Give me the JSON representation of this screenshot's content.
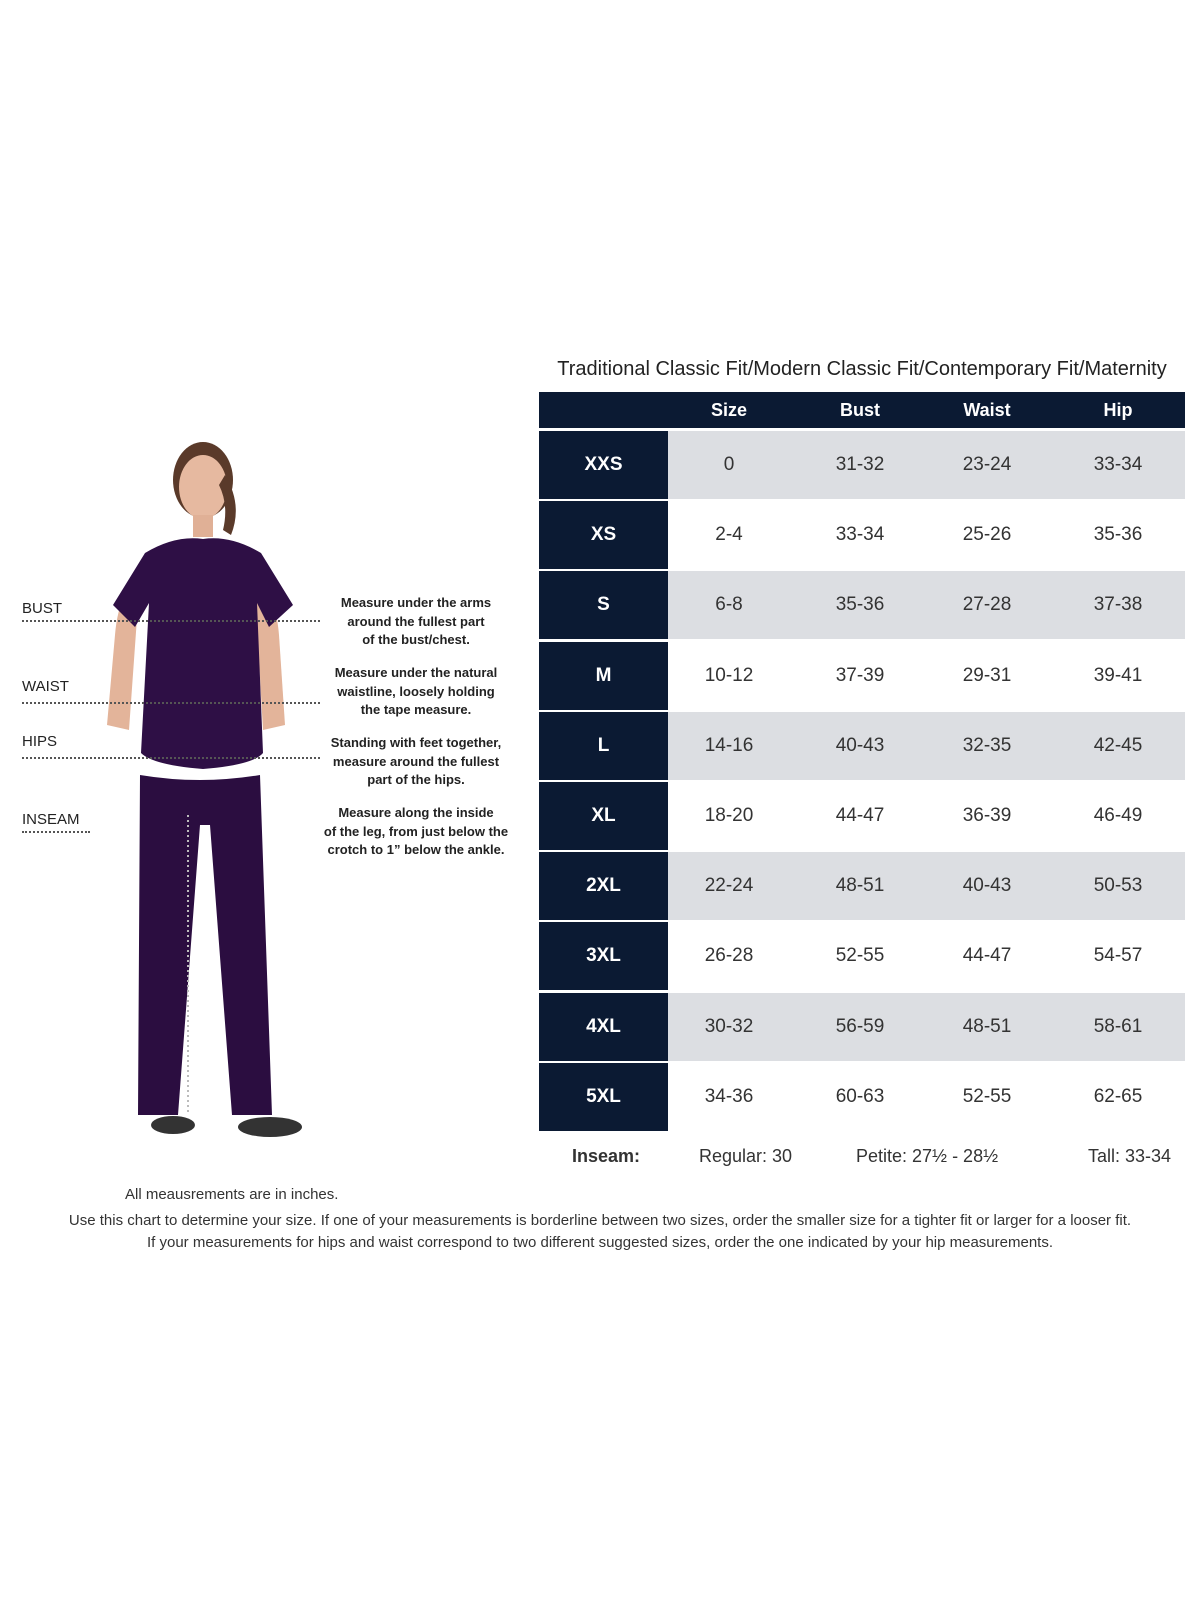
{
  "title": "Traditional Classic Fit/Modern Classic Fit/Contemporary Fit/Maternity",
  "table": {
    "headers": [
      "Size",
      "Bust",
      "Waist",
      "Hip"
    ],
    "rows": [
      {
        "label": "XXS",
        "size": "0",
        "bust": "31-32",
        "waist": "23-24",
        "hip": "33-34"
      },
      {
        "label": "XS",
        "size": "2-4",
        "bust": "33-34",
        "waist": "25-26",
        "hip": "35-36"
      },
      {
        "label": "S",
        "size": "6-8",
        "bust": "35-36",
        "waist": "27-28",
        "hip": "37-38"
      },
      {
        "label": "M",
        "size": "10-12",
        "bust": "37-39",
        "waist": "29-31",
        "hip": "39-41"
      },
      {
        "label": "L",
        "size": "14-16",
        "bust": "40-43",
        "waist": "32-35",
        "hip": "42-45"
      },
      {
        "label": "XL",
        "size": "18-20",
        "bust": "44-47",
        "waist": "36-39",
        "hip": "46-49"
      },
      {
        "label": "2XL",
        "size": "22-24",
        "bust": "48-51",
        "waist": "40-43",
        "hip": "50-53"
      },
      {
        "label": "3XL",
        "size": "26-28",
        "bust": "52-55",
        "waist": "44-47",
        "hip": "54-57"
      },
      {
        "label": "4XL",
        "size": "30-32",
        "bust": "56-59",
        "waist": "48-51",
        "hip": "58-61"
      },
      {
        "label": "5XL",
        "size": "34-36",
        "bust": "60-63",
        "waist": "52-55",
        "hip": "62-65"
      }
    ]
  },
  "inseam": {
    "label": "Inseam:",
    "regular": "Regular: 30",
    "petite": "Petite: 27½ - 28½",
    "tall": "Tall: 33-34"
  },
  "measure": {
    "bust": {
      "label": "BUST",
      "lines": [
        "Measure under the arms",
        "around the fullest part",
        "of the bust/chest."
      ]
    },
    "waist": {
      "label": "WAIST",
      "lines": [
        "Measure under the natural",
        "waistline, loosely holding",
        "the tape measure."
      ]
    },
    "hips": {
      "label": "HIPS",
      "lines": [
        "Standing with feet together,",
        "measure around the fullest",
        "part of the hips."
      ]
    },
    "inseam": {
      "label": "INSEAM",
      "lines": [
        "Measure along the inside",
        "of the leg, from just below the",
        "crotch to 1” below the ankle."
      ]
    }
  },
  "notes": {
    "units": "All meausrements are in inches.",
    "line1": "Use this chart to determine your size. If one of your measurements is borderline between two sizes, order the smaller size for a tighter fit or larger for a looser fit.",
    "line2": "If your measurements for hips and waist correspond to two different suggested sizes, order the one indicated by your hip measurements."
  },
  "colors": {
    "navy": "#0b1a33",
    "band": "#dcdee2",
    "scrubs": "#2e0f45"
  }
}
